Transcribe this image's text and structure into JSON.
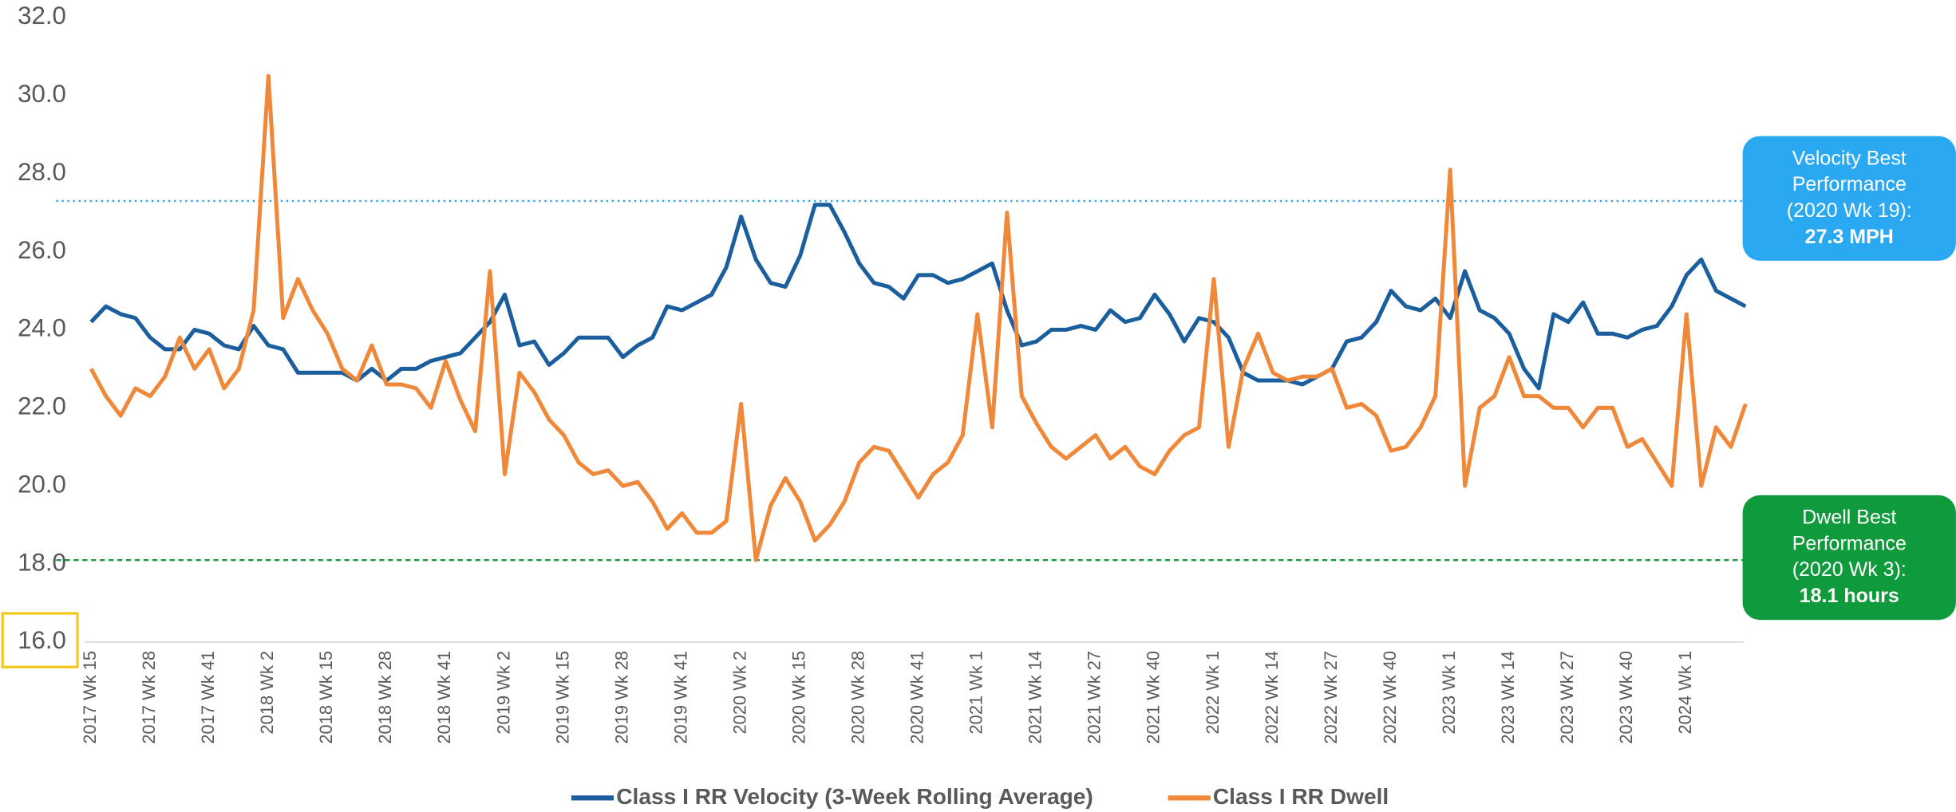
{
  "chart_data": {
    "type": "line",
    "categories": [
      "2017 Wk 15",
      null,
      null,
      null,
      "2017 Wk 28",
      null,
      null,
      null,
      "2017 Wk 41",
      null,
      null,
      null,
      "2018 Wk 2",
      null,
      null,
      null,
      "2018 Wk 15",
      null,
      null,
      null,
      "2018 Wk 28",
      null,
      null,
      null,
      "2018 Wk 41",
      null,
      null,
      null,
      "2019 Wk 2",
      null,
      null,
      null,
      "2019 Wk 15",
      null,
      null,
      null,
      "2019 Wk 28",
      null,
      null,
      null,
      "2019 Wk 41",
      null,
      null,
      null,
      "2020 Wk 2",
      null,
      null,
      null,
      "2020 Wk 15",
      null,
      null,
      null,
      "2020 Wk 28",
      null,
      null,
      null,
      "2020 Wk 41",
      null,
      null,
      null,
      "2021 Wk 1",
      null,
      null,
      null,
      "2021 Wk 14",
      null,
      null,
      null,
      "2021 Wk 27",
      null,
      null,
      null,
      "2021 Wk 40",
      null,
      null,
      null,
      "2022 Wk 1",
      null,
      null,
      null,
      "2022 Wk 14",
      null,
      null,
      null,
      "2022 Wk 27",
      null,
      null,
      null,
      "2022 Wk 40",
      null,
      null,
      null,
      "2023 Wk 1",
      null,
      null,
      null,
      "2023 Wk 14",
      null,
      null,
      null,
      "2023 Wk 27",
      null,
      null,
      null,
      "2023 Wk 40",
      null,
      null,
      null,
      "2024 Wk 1",
      null,
      null,
      null,
      null
    ],
    "series": [
      {
        "name": "Class I RR Velocity (3-Week Rolling Average)",
        "color": "#1a5e9e",
        "values": [
          24.2,
          24.6,
          24.4,
          24.3,
          23.8,
          23.5,
          23.5,
          24.0,
          23.9,
          23.6,
          23.5,
          24.1,
          23.6,
          23.5,
          22.9,
          22.9,
          22.9,
          22.9,
          22.7,
          23.0,
          22.7,
          23.0,
          23.0,
          23.2,
          23.3,
          23.4,
          23.8,
          24.2,
          24.9,
          23.6,
          23.7,
          23.1,
          23.4,
          23.8,
          23.8,
          23.8,
          23.3,
          23.6,
          23.8,
          24.6,
          24.5,
          24.7,
          24.9,
          25.6,
          26.9,
          25.8,
          25.2,
          25.1,
          25.9,
          27.2,
          27.2,
          26.5,
          25.7,
          25.2,
          25.1,
          24.8,
          25.4,
          25.4,
          25.2,
          25.3,
          25.5,
          25.7,
          24.5,
          23.6,
          23.7,
          24.0,
          24.0,
          24.1,
          24.0,
          24.5,
          24.2,
          24.3,
          24.9,
          24.4,
          23.7,
          24.3,
          24.2,
          23.8,
          22.9,
          22.7,
          22.7,
          22.7,
          22.6,
          22.8,
          23.0,
          23.7,
          23.8,
          24.2,
          25.0,
          24.6,
          24.5,
          24.8,
          24.3,
          25.5,
          24.5,
          24.3,
          23.9,
          23.0,
          22.5,
          24.4,
          24.2,
          24.7,
          23.9,
          23.9,
          23.8,
          24.0,
          24.1,
          24.6,
          25.4,
          25.8,
          25.0,
          24.8,
          24.6
        ]
      },
      {
        "name": "Class I RR Dwell",
        "color": "#f0883a",
        "values": [
          23.0,
          22.3,
          21.8,
          22.5,
          22.3,
          22.8,
          23.8,
          23.0,
          23.5,
          22.5,
          23.0,
          24.5,
          30.5,
          24.3,
          25.3,
          24.5,
          23.9,
          23.0,
          22.7,
          23.6,
          22.6,
          22.6,
          22.5,
          22.0,
          23.2,
          22.2,
          21.4,
          25.5,
          20.3,
          22.9,
          22.4,
          21.7,
          21.3,
          20.6,
          20.3,
          20.4,
          20.0,
          20.1,
          19.6,
          18.9,
          19.3,
          18.8,
          18.8,
          19.1,
          22.1,
          18.1,
          19.5,
          20.2,
          19.6,
          18.6,
          19.0,
          19.6,
          20.6,
          21.0,
          20.9,
          20.3,
          19.7,
          20.3,
          20.6,
          21.3,
          24.4,
          21.5,
          27.0,
          22.3,
          21.6,
          21.0,
          20.7,
          21.0,
          21.3,
          20.7,
          21.0,
          20.5,
          20.3,
          20.9,
          21.3,
          21.5,
          25.3,
          21.0,
          23.0,
          23.9,
          22.9,
          22.7,
          22.8,
          22.8,
          23.0,
          22.0,
          22.1,
          21.8,
          20.9,
          21.0,
          21.5,
          22.3,
          28.1,
          20.0,
          22.0,
          22.3,
          23.3,
          22.3,
          22.3,
          22.0,
          22.0,
          21.5,
          22.0,
          22.0,
          21.0,
          21.2,
          20.6,
          20.0,
          24.4,
          20.0,
          21.5,
          21.0,
          22.1
        ]
      }
    ],
    "ylim": [
      16,
      32
    ],
    "yticks": [
      {
        "value": 16,
        "label": "16.0"
      },
      {
        "value": 18,
        "label": "18.0"
      },
      {
        "value": 20,
        "label": "20.0"
      },
      {
        "value": 22,
        "label": "22.0"
      },
      {
        "value": 24,
        "label": "24.0"
      },
      {
        "value": 26,
        "label": "26.0"
      },
      {
        "value": 28,
        "label": "28.0"
      },
      {
        "value": 30,
        "label": "30.0"
      },
      {
        "value": 32,
        "label": "32.0"
      }
    ],
    "grid": false,
    "legend": "bottom",
    "annotations": [
      {
        "text": "Velocity Best Performance (2020 Wk 19):",
        "value_label": "27.3 MPH",
        "value": 27.3,
        "color": "#2aa8f2",
        "line_color": "#2e9fe6",
        "line_style": "dotted"
      },
      {
        "text": "Dwell Best Performance (2020 Wk 3):",
        "value_label": "18.1 hours",
        "value": 18.1,
        "color": "#0f9a3c",
        "line_color": "#1a9641",
        "line_style": "dashed"
      }
    ]
  }
}
